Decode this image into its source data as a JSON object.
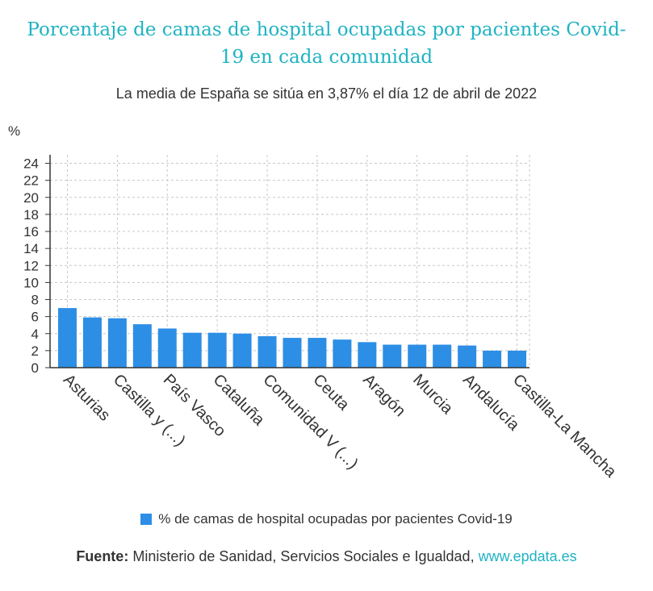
{
  "title": "Porcentaje de camas de hospital ocupadas por pacientes Covid-19 en cada comunidad",
  "subtitle": "La media de España se sitúa en 3,87% el día 12 de abril de 2022",
  "legend_label": "% de camas de hospital ocupadas por pacientes Covid-19",
  "source": {
    "label": "Fuente:",
    "text": "Ministerio de Sanidad, Servicios Sociales e Igualdad,",
    "link": "www.epdata.es"
  },
  "colors": {
    "title": "#1fb3c3",
    "bar": "#2d8ee5",
    "link": "#1fb3c3"
  },
  "chart_data": {
    "type": "bar",
    "ylabel": "%",
    "ylim": [
      0,
      25
    ],
    "yticks": [
      0,
      2,
      4,
      6,
      8,
      10,
      12,
      14,
      16,
      18,
      20,
      22,
      24
    ],
    "grid": true,
    "categories": [
      "Asturias",
      "",
      "Castilla y (...)",
      "",
      "País Vasco",
      "",
      "Cataluña",
      "",
      "Comunidad V (...)",
      "",
      "Ceuta",
      "",
      "Aragón",
      "",
      "Murcia",
      "",
      "Andalucía",
      "",
      "Castilla-La Mancha"
    ],
    "series": [
      {
        "name": "% de camas de hospital ocupadas por pacientes Covid-19",
        "values": [
          7.0,
          5.9,
          5.8,
          5.1,
          4.6,
          4.1,
          4.1,
          4.0,
          3.7,
          3.5,
          3.5,
          3.3,
          3.0,
          2.7,
          2.7,
          2.7,
          2.6,
          2.0,
          2.0
        ]
      }
    ]
  }
}
